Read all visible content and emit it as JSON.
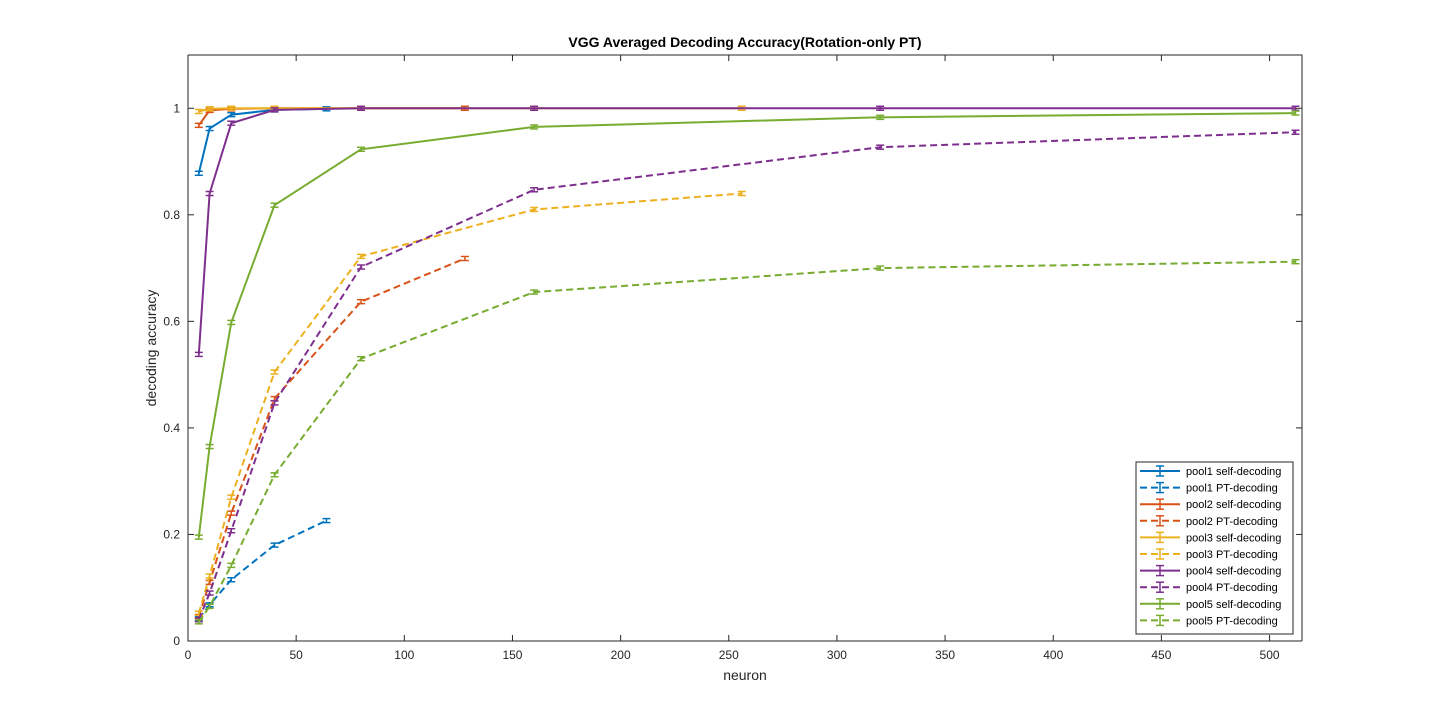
{
  "chart_data": {
    "type": "line",
    "title": "VGG Averaged Decoding Accuracy(Rotation-only PT)",
    "xlabel": "neuron",
    "ylabel": "decoding accuracy",
    "xlim": [
      0,
      515
    ],
    "ylim": [
      0,
      1.1
    ],
    "xticks": [
      0,
      50,
      100,
      150,
      200,
      250,
      300,
      350,
      400,
      450,
      500
    ],
    "yticks": [
      0,
      0.2,
      0.4,
      0.6,
      0.8,
      1
    ],
    "ytick_labels": [
      "0",
      "0.2",
      "0.4",
      "0.6",
      "0.8",
      "1"
    ],
    "grid": false,
    "legend_position": "bottom-right",
    "series": [
      {
        "name": "pool1 self-decoding",
        "color": "#0072BD",
        "style": "solid",
        "x": [
          5,
          10,
          20,
          40,
          64
        ],
        "y": [
          0.878,
          0.962,
          0.988,
          0.997,
          0.999
        ]
      },
      {
        "name": "pool1 PT-decoding",
        "color": "#0072BD",
        "style": "dashed",
        "x": [
          5,
          10,
          20,
          40,
          64
        ],
        "y": [
          0.042,
          0.068,
          0.115,
          0.18,
          0.226
        ]
      },
      {
        "name": "pool2 self-decoding",
        "color": "#D95319",
        "style": "solid",
        "x": [
          5,
          10,
          20,
          40,
          80,
          128
        ],
        "y": [
          0.968,
          0.996,
          0.999,
          1.0,
          1.0,
          1.0
        ]
      },
      {
        "name": "pool2 PT-decoding",
        "color": "#D95319",
        "style": "dashed",
        "x": [
          5,
          10,
          20,
          40,
          80,
          128
        ],
        "y": [
          0.046,
          0.11,
          0.24,
          0.455,
          0.637,
          0.718
        ]
      },
      {
        "name": "pool3 self-decoding",
        "color": "#EDB120",
        "style": "solid",
        "x": [
          5,
          10,
          20,
          40,
          80,
          160,
          256
        ],
        "y": [
          0.994,
          0.999,
          1.0,
          1.0,
          1.0,
          1.0,
          1.0
        ]
      },
      {
        "name": "pool3 PT-decoding",
        "color": "#EDB120",
        "style": "dashed",
        "x": [
          5,
          10,
          20,
          40,
          80,
          160,
          256
        ],
        "y": [
          0.052,
          0.122,
          0.27,
          0.505,
          0.722,
          0.81,
          0.84
        ]
      },
      {
        "name": "pool4 self-decoding",
        "color": "#7E2F8E",
        "style": "solid",
        "x": [
          5,
          10,
          20,
          40,
          80,
          160,
          320,
          512
        ],
        "y": [
          0.538,
          0.84,
          0.972,
          0.997,
          1.0,
          1.0,
          1.0,
          1.0
        ]
      },
      {
        "name": "pool4 PT-decoding",
        "color": "#7E2F8E",
        "style": "dashed",
        "x": [
          5,
          10,
          20,
          40,
          80,
          160,
          320,
          512
        ],
        "y": [
          0.04,
          0.09,
          0.207,
          0.447,
          0.702,
          0.847,
          0.927,
          0.955
        ]
      },
      {
        "name": "pool5 self-decoding",
        "color": "#77AC30",
        "style": "solid",
        "x": [
          5,
          10,
          20,
          40,
          80,
          160,
          320,
          512
        ],
        "y": [
          0.195,
          0.365,
          0.598,
          0.818,
          0.923,
          0.965,
          0.983,
          0.991
        ]
      },
      {
        "name": "pool5 PT-decoding",
        "color": "#77AC30",
        "style": "dashed",
        "x": [
          5,
          10,
          20,
          40,
          80,
          160,
          320,
          512
        ],
        "y": [
          0.036,
          0.065,
          0.142,
          0.312,
          0.53,
          0.655,
          0.7,
          0.712
        ]
      }
    ]
  }
}
